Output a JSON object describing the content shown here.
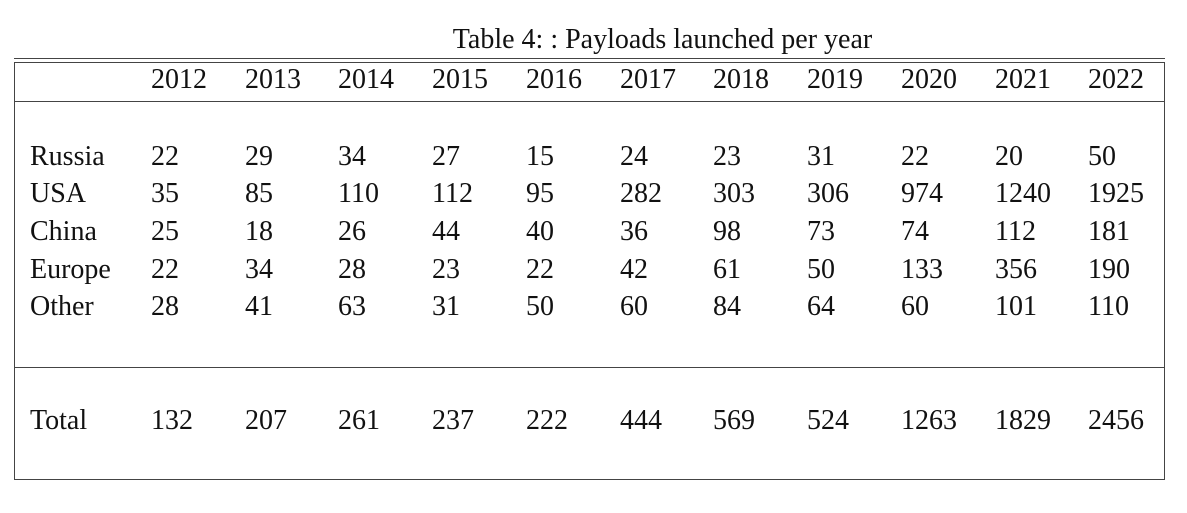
{
  "caption": "Table 4: : Payloads launched per year",
  "table": {
    "years": [
      "2012",
      "2013",
      "2014",
      "2015",
      "2016",
      "2017",
      "2018",
      "2019",
      "2020",
      "2021",
      "2022"
    ],
    "rows": [
      {
        "label": "Russia",
        "values": [
          "22",
          "29",
          "34",
          "27",
          "15",
          "24",
          "23",
          "31",
          "22",
          "20",
          "50"
        ]
      },
      {
        "label": "USA",
        "values": [
          "35",
          "85",
          "110",
          "112",
          "95",
          "282",
          "303",
          "306",
          "974",
          "1240",
          "1925"
        ]
      },
      {
        "label": "China",
        "values": [
          "25",
          "18",
          "26",
          "44",
          "40",
          "36",
          "98",
          "73",
          "74",
          "112",
          "181"
        ]
      },
      {
        "label": "Europe",
        "values": [
          "22",
          "34",
          "28",
          "23",
          "22",
          "42",
          "61",
          "50",
          "133",
          "356",
          "190"
        ]
      },
      {
        "label": "Other",
        "values": [
          "28",
          "41",
          "63",
          "31",
          "50",
          "60",
          "84",
          "64",
          "60",
          "101",
          "110"
        ]
      }
    ],
    "total": {
      "label": "Total",
      "values": [
        "132",
        "207",
        "261",
        "237",
        "222",
        "444",
        "569",
        "524",
        "1263",
        "1829",
        "2456"
      ]
    }
  }
}
